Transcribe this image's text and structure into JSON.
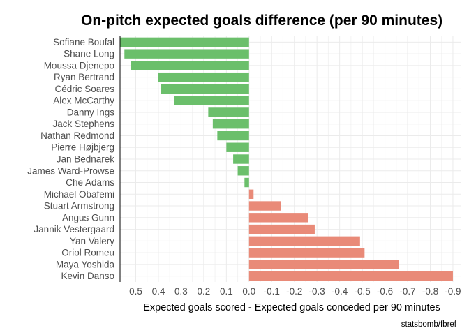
{
  "chart_data": {
    "type": "bar",
    "orientation": "horizontal",
    "title": "On-pitch expected goals difference (per 90 minutes)",
    "xlabel": "Expected goals scored - Expected goals conceded per 90 minutes",
    "ylabel": "",
    "caption": "statsbomb/fbref",
    "x_axis_reversed": true,
    "xlim": [
      0.55,
      -0.9
    ],
    "x_ticks": [
      0.5,
      0.4,
      0.3,
      0.2,
      0.1,
      0.0,
      -0.1,
      -0.2,
      -0.3,
      -0.4,
      -0.5,
      -0.6,
      -0.7,
      -0.8,
      -0.9
    ],
    "x_tick_labels": [
      "0.5",
      "0.4",
      "0.3",
      "0.2",
      "0.1",
      "0.0",
      "-0.1",
      "-0.2",
      "-0.3",
      "-0.4",
      "-0.5",
      "-0.6",
      "-0.7",
      "-0.8",
      "-0.9"
    ],
    "grid": true,
    "legend": "none",
    "positive_color": "#6bbf6b",
    "negative_color": "#e98a78",
    "categories": [
      "Sofiane Boufal",
      "Shane Long",
      "Moussa Djenepo",
      "Ryan Bertrand",
      "Cédric Soares",
      "Alex McCarthy",
      "Danny Ings",
      "Jack Stephens",
      "Nathan Redmond",
      "Pierre Højbjerg",
      "Jan Bednarek",
      "James Ward-Prowse",
      "Che Adams",
      "Michael Obafemi",
      "Stuart Armstrong",
      "Angus Gunn",
      "Jannik Vestergaard",
      "Yan Valery",
      "Oriol Romeu",
      "Maya Yoshida",
      "Kevin Danso"
    ],
    "values": [
      0.57,
      0.55,
      0.52,
      0.4,
      0.39,
      0.33,
      0.18,
      0.16,
      0.14,
      0.1,
      0.07,
      0.05,
      0.02,
      -0.02,
      -0.14,
      -0.26,
      -0.29,
      -0.49,
      -0.51,
      -0.66,
      -0.9
    ]
  }
}
